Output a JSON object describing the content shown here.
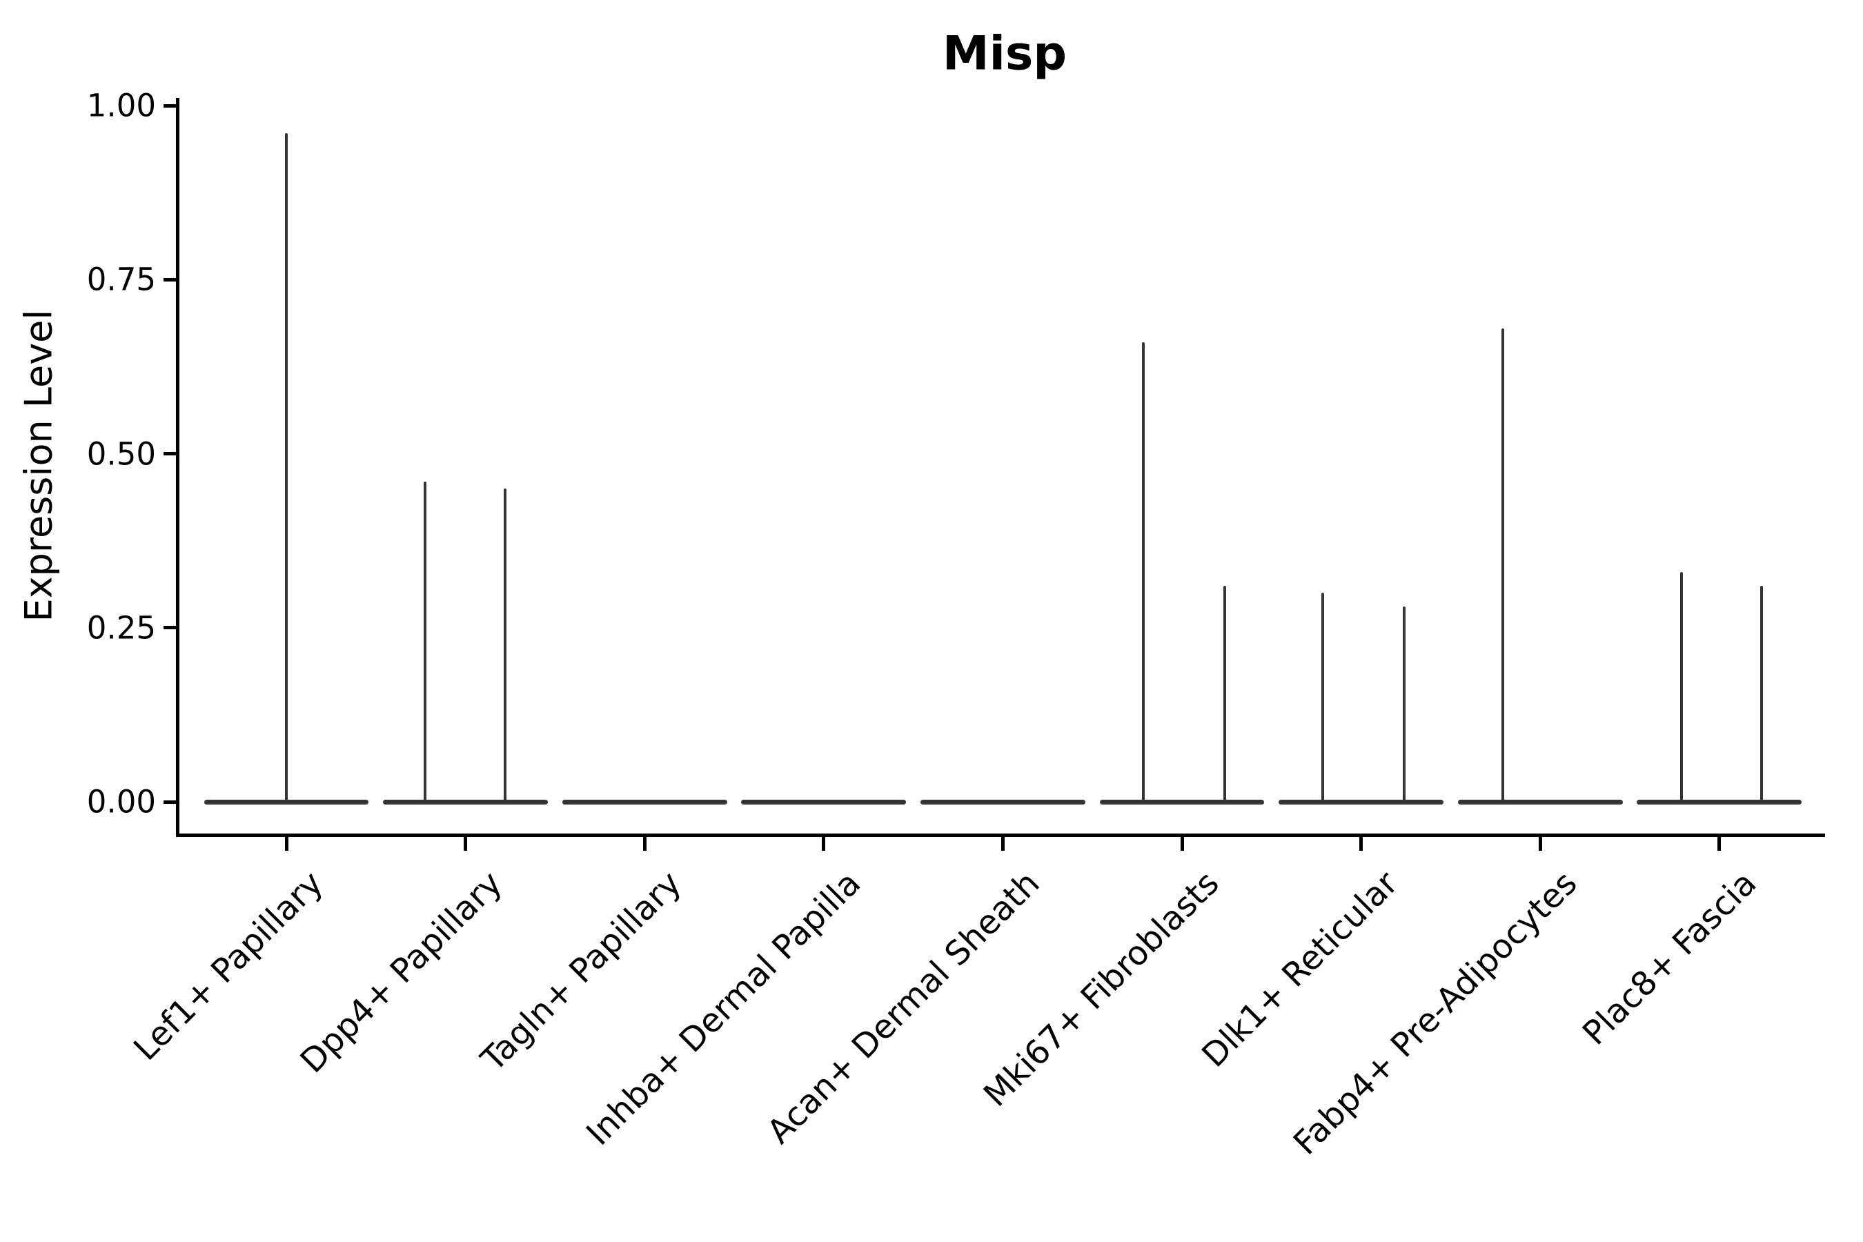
{
  "chart_data": {
    "type": "violin",
    "title": "Misp",
    "xlabel": "",
    "ylabel": "Expression Level",
    "ylim": [
      0,
      1.0
    ],
    "yticks": [
      1.0,
      0.75,
      0.5,
      0.25,
      0.0
    ],
    "ytick_labels": [
      "1.00",
      "0.75",
      "0.50",
      "0.25",
      "0.00"
    ],
    "legend": "none",
    "grid": "off",
    "categories": [
      "Lef1+ Papillary",
      "Dpp4+ Papillary",
      "Tagln+ Papillary",
      "Inhba+ Dermal Papilla",
      "Acan+ Dermal Sheath",
      "Mki67+ Fibroblasts",
      "Dlk1+ Reticular",
      "Fabp4+ Pre-Adipocytes",
      "Plac8+ Fascia"
    ],
    "violins": [
      {
        "category": "Lef1+ Papillary",
        "base_at_zero": true,
        "spikes": [
          {
            "offset_frac": 0.0,
            "max": 0.96
          }
        ]
      },
      {
        "category": "Dpp4+ Papillary",
        "base_at_zero": true,
        "spikes": [
          {
            "offset_frac": -0.225,
            "max": 0.46
          },
          {
            "offset_frac": 0.22,
            "max": 0.45
          }
        ]
      },
      {
        "category": "Tagln+ Papillary",
        "base_at_zero": true,
        "spikes": []
      },
      {
        "category": "Inhba+ Dermal Papilla",
        "base_at_zero": true,
        "spikes": []
      },
      {
        "category": "Acan+ Dermal Sheath",
        "base_at_zero": true,
        "spikes": []
      },
      {
        "category": "Mki67+ Fibroblasts",
        "base_at_zero": true,
        "spikes": [
          {
            "offset_frac": -0.215,
            "max": 0.66
          },
          {
            "offset_frac": 0.24,
            "max": 0.31
          }
        ]
      },
      {
        "category": "Dlk1+ Reticular",
        "base_at_zero": true,
        "spikes": [
          {
            "offset_frac": -0.215,
            "max": 0.3
          },
          {
            "offset_frac": 0.24,
            "max": 0.28
          }
        ]
      },
      {
        "category": "Fabp4+ Pre-Adipocytes",
        "base_at_zero": true,
        "spikes": [
          {
            "offset_frac": -0.21,
            "max": 0.68
          }
        ]
      },
      {
        "category": "Plac8+ Fascia",
        "base_at_zero": true,
        "spikes": [
          {
            "offset_frac": -0.21,
            "max": 0.33
          },
          {
            "offset_frac": 0.235,
            "max": 0.31
          }
        ]
      }
    ],
    "style": {
      "ink": "#343434",
      "axis_color": "#000000",
      "text_color": "#000000",
      "background": "#ffffff"
    }
  }
}
